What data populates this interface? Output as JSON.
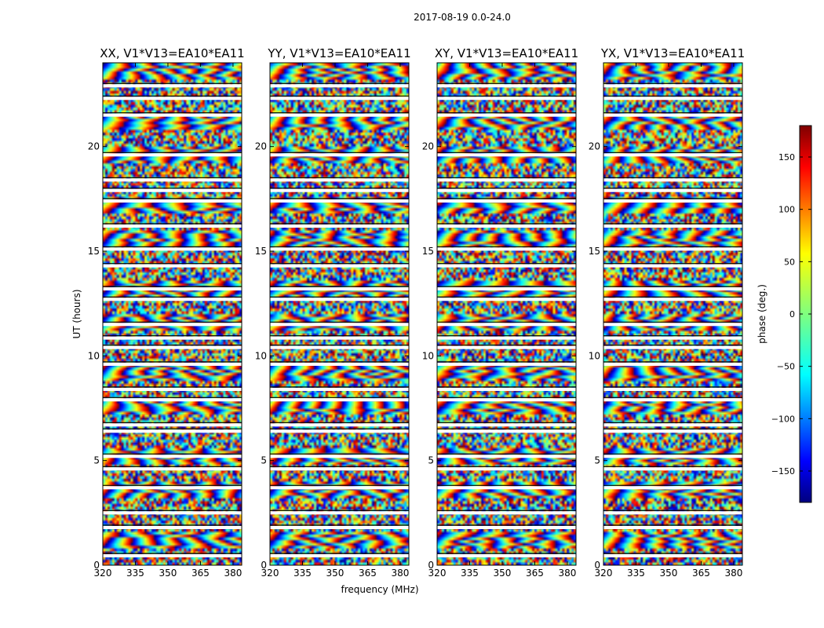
{
  "figure": {
    "suptitle": "2017-08-19 0.0-24.0"
  },
  "chart_data": {
    "type": "heatmap",
    "title": "2017-08-19 0.0-24.0",
    "xlabel": "frequency (MHz)",
    "ylabel": "UT (hours)",
    "xlim": [
      320,
      384
    ],
    "ylim": [
      0,
      24
    ],
    "xticks": [
      "320",
      "335",
      "350",
      "365",
      "380"
    ],
    "xtick_values": [
      320,
      335,
      350,
      365,
      380
    ],
    "yticks": [
      "0",
      "5",
      "10",
      "15",
      "20"
    ],
    "ytick_values": [
      0,
      5,
      10,
      15,
      20
    ],
    "panels": [
      {
        "title": "XX, V1*V13=EA10*EA11",
        "pol": "XX"
      },
      {
        "title": "YY, V1*V13=EA10*EA11",
        "pol": "YY"
      },
      {
        "title": "XY, V1*V13=EA10*EA11",
        "pol": "XY"
      },
      {
        "title": "YX, V1*V13=EA10*EA11",
        "pol": "YX"
      }
    ],
    "colorbar": {
      "label": "phase (deg.)",
      "range": [
        -180,
        180
      ],
      "ticks": [
        "150",
        "100",
        "50",
        "0",
        "−50",
        "−100",
        "−150"
      ],
      "tick_values": [
        150,
        100,
        50,
        0,
        -50,
        -100,
        -150
      ],
      "colormap": "jet"
    },
    "blank_rows_ut": [
      0.45,
      1.8,
      2.5,
      3.7,
      4.6,
      5.2,
      6.4,
      6.7,
      7.9,
      8.4,
      9.6,
      10.4,
      10.85,
      11.5,
      12.7,
      13.2,
      14.3,
      15.1,
      16.2,
      17.4,
      17.9,
      18.4,
      19.6,
      21.5,
      22.3,
      22.9
    ]
  }
}
